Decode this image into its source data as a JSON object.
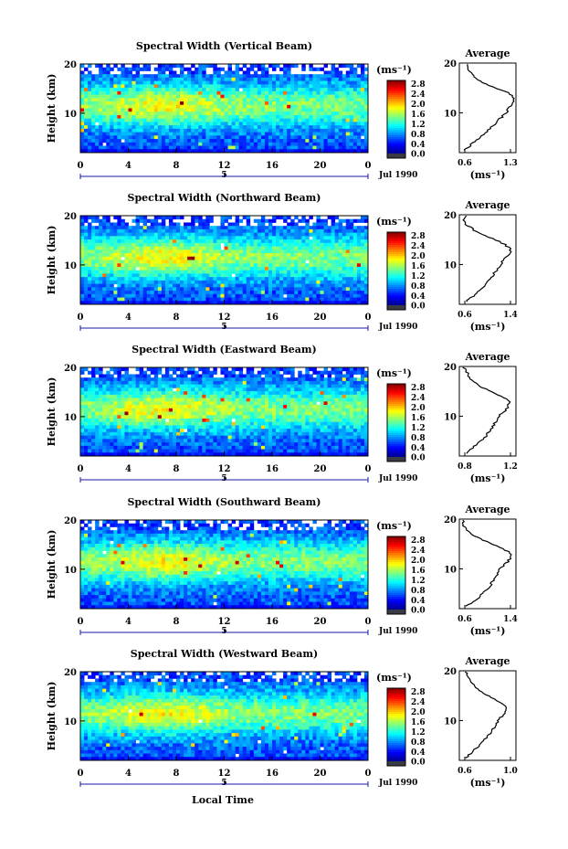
{
  "page": {
    "xaxis_label": "Local Time",
    "colors": {
      "stroke": "#000000",
      "marker": "#1a1aa8",
      "unit_base": "#3a3a44"
    }
  },
  "chart_data": [
    {
      "type": "heatmap",
      "title": "Spectral Width (Vertical Beam)",
      "ylabel": "Height (km)",
      "xlabel": "Local Time",
      "x_ticks": [
        "0",
        "4",
        "8",
        "12",
        "16",
        "20",
        "0"
      ],
      "y_ticks": [
        "10",
        "20"
      ],
      "xlim": [
        0,
        24
      ],
      "ylim": [
        2,
        20
      ],
      "day_marker": "5",
      "date_label": "Jul 1990",
      "colorbar": {
        "unit": "(ms⁻¹)",
        "ticks": [
          "2.8",
          "2.4",
          "2.0",
          "1.6",
          "1.2",
          "0.8",
          "0.4",
          "0.0"
        ]
      },
      "profile": {
        "title": "Average",
        "xlabel": "(ms⁻¹)",
        "x_ticks": [
          "0.6",
          "1.3"
        ],
        "xlim": [
          0.6,
          1.3
        ],
        "ylim": [
          2,
          20
        ],
        "y_ticks": [
          "10",
          "20"
        ],
        "heights": [
          2.5,
          4,
          6,
          8,
          10,
          11,
          12,
          13,
          14,
          15,
          16,
          17,
          18,
          19,
          19.8
        ],
        "values": [
          0.66,
          0.78,
          0.92,
          1.05,
          1.18,
          1.22,
          1.27,
          1.28,
          1.2,
          1.05,
          0.9,
          0.8,
          0.74,
          0.7,
          0.69
        ]
      }
    },
    {
      "type": "heatmap",
      "title": "Spectral Width (Northward Beam)",
      "ylabel": "Height (km)",
      "xlabel": "Local Time",
      "x_ticks": [
        "0",
        "4",
        "8",
        "12",
        "16",
        "20",
        "0"
      ],
      "y_ticks": [
        "10",
        "20"
      ],
      "xlim": [
        0,
        24
      ],
      "ylim": [
        2,
        20
      ],
      "day_marker": "5",
      "date_label": "Jul 1990",
      "colorbar": {
        "unit": "(ms⁻¹)",
        "ticks": [
          "2.8",
          "2.4",
          "2.0",
          "1.6",
          "1.2",
          "0.8",
          "0.4",
          "0.0"
        ]
      },
      "profile": {
        "title": "Average",
        "xlabel": "(ms⁻¹)",
        "x_ticks": [
          "0.6",
          "1.4"
        ],
        "xlim": [
          0.6,
          1.4
        ],
        "ylim": [
          2,
          20
        ],
        "y_ticks": [
          "10",
          "20"
        ],
        "heights": [
          2.5,
          4,
          6,
          8,
          10,
          11,
          12,
          13,
          14,
          15,
          16,
          17,
          18,
          19,
          19.8
        ],
        "values": [
          0.7,
          0.82,
          0.98,
          1.08,
          1.18,
          1.22,
          1.3,
          1.33,
          1.25,
          1.1,
          0.92,
          0.8,
          0.7,
          0.66,
          0.68
        ]
      }
    },
    {
      "type": "heatmap",
      "title": "Spectral Width (Eastward Beam)",
      "ylabel": "Height (km)",
      "xlabel": "Local Time",
      "x_ticks": [
        "0",
        "4",
        "8",
        "12",
        "16",
        "20",
        "0"
      ],
      "y_ticks": [
        "10",
        "20"
      ],
      "xlim": [
        0,
        24
      ],
      "ylim": [
        2,
        20
      ],
      "day_marker": "5",
      "date_label": "Jul 1990",
      "colorbar": {
        "unit": "(ms⁻¹)",
        "ticks": [
          "2.8",
          "2.4",
          "2.0",
          "1.6",
          "1.2",
          "0.8",
          "0.4",
          "0.0"
        ]
      },
      "profile": {
        "title": "Average",
        "xlabel": "(ms⁻¹)",
        "x_ticks": [
          "0.8",
          "1.2"
        ],
        "xlim": [
          0.6,
          1.35
        ],
        "ylim": [
          2,
          20
        ],
        "y_ticks": [
          "10",
          "20"
        ],
        "heights": [
          2.5,
          4,
          6,
          8,
          10,
          11,
          12,
          13,
          14,
          15,
          16,
          17,
          18,
          19,
          19.8
        ],
        "values": [
          0.68,
          0.8,
          0.95,
          1.05,
          1.12,
          1.2,
          1.25,
          1.27,
          1.15,
          1.02,
          0.88,
          0.78,
          0.72,
          0.7,
          0.66
        ]
      }
    },
    {
      "type": "heatmap",
      "title": "Spectral Width (Southward Beam)",
      "ylabel": "Height (km)",
      "xlabel": "Local Time",
      "x_ticks": [
        "0",
        "4",
        "8",
        "12",
        "16",
        "20",
        "0"
      ],
      "y_ticks": [
        "10",
        "20"
      ],
      "xlim": [
        0,
        24
      ],
      "ylim": [
        2,
        20
      ],
      "day_marker": "5",
      "date_label": "Jul 1990",
      "colorbar": {
        "unit": "(ms⁻¹)",
        "ticks": [
          "2.8",
          "2.4",
          "2.0",
          "1.6",
          "1.2",
          "0.8",
          "0.4",
          "0.0"
        ]
      },
      "profile": {
        "title": "Average",
        "xlabel": "(ms⁻¹)",
        "x_ticks": [
          "0.6",
          "1.4"
        ],
        "xlim": [
          0.6,
          1.4
        ],
        "ylim": [
          2,
          20
        ],
        "y_ticks": [
          "10",
          "20"
        ],
        "heights": [
          2.5,
          4,
          6,
          8,
          10,
          11,
          12,
          13,
          14,
          15,
          16,
          17,
          18,
          19,
          19.8
        ],
        "values": [
          0.7,
          0.85,
          1.0,
          1.1,
          1.18,
          1.25,
          1.32,
          1.35,
          1.22,
          1.05,
          0.9,
          0.78,
          0.7,
          0.64,
          0.66
        ]
      }
    },
    {
      "type": "heatmap",
      "title": "Spectral Width (Westward Beam)",
      "ylabel": "Height (km)",
      "xlabel": "Local Time",
      "x_ticks": [
        "0",
        "4",
        "8",
        "12",
        "16",
        "20",
        "0"
      ],
      "y_ticks": [
        "10",
        "20"
      ],
      "xlim": [
        0,
        24
      ],
      "ylim": [
        2,
        20
      ],
      "day_marker": "5",
      "date_label": "Jul 1990",
      "colorbar": {
        "unit": "(ms⁻¹)",
        "ticks": [
          "2.8",
          "2.4",
          "2.0",
          "1.6",
          "1.2",
          "0.8",
          "0.4",
          "0.0"
        ]
      },
      "profile": {
        "title": "Average",
        "xlabel": "(ms⁻¹)",
        "x_ticks": [
          "0.6",
          "1.0"
        ],
        "xlim": [
          0.6,
          1.15
        ],
        "ylim": [
          2,
          20
        ],
        "y_ticks": [
          "10",
          "20"
        ],
        "heights": [
          2.5,
          4,
          6,
          8,
          10,
          11,
          12,
          13,
          14,
          15,
          16,
          17,
          18,
          19,
          19.8
        ],
        "values": [
          0.66,
          0.74,
          0.84,
          0.92,
          0.98,
          1.02,
          1.06,
          1.04,
          0.96,
          0.88,
          0.8,
          0.74,
          0.7,
          0.68,
          0.66
        ]
      }
    }
  ]
}
